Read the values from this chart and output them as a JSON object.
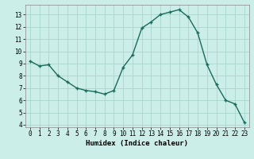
{
  "x": [
    0,
    1,
    2,
    3,
    4,
    5,
    6,
    7,
    8,
    9,
    10,
    11,
    12,
    13,
    14,
    15,
    16,
    17,
    18,
    19,
    20,
    21,
    22,
    23
  ],
  "y": [
    9.2,
    8.8,
    8.9,
    8.0,
    7.5,
    7.0,
    6.8,
    6.7,
    6.5,
    6.8,
    8.7,
    9.7,
    11.9,
    12.4,
    13.0,
    13.2,
    13.4,
    12.8,
    11.5,
    8.9,
    7.3,
    6.0,
    5.7,
    4.2
  ],
  "line_color": "#1a6b5a",
  "marker": "+",
  "marker_size": 3,
  "bg_color": "#cceee8",
  "grid_color": "#aad4cc",
  "xlabel": "Humidex (Indice chaleur)",
  "xlim": [
    -0.5,
    23.5
  ],
  "ylim": [
    3.8,
    13.8
  ],
  "yticks": [
    4,
    5,
    6,
    7,
    8,
    9,
    10,
    11,
    12,
    13
  ],
  "xticks": [
    0,
    1,
    2,
    3,
    4,
    5,
    6,
    7,
    8,
    9,
    10,
    11,
    12,
    13,
    14,
    15,
    16,
    17,
    18,
    19,
    20,
    21,
    22,
    23
  ],
  "xlabel_fontsize": 6.5,
  "tick_fontsize": 5.5,
  "line_width": 1.0
}
